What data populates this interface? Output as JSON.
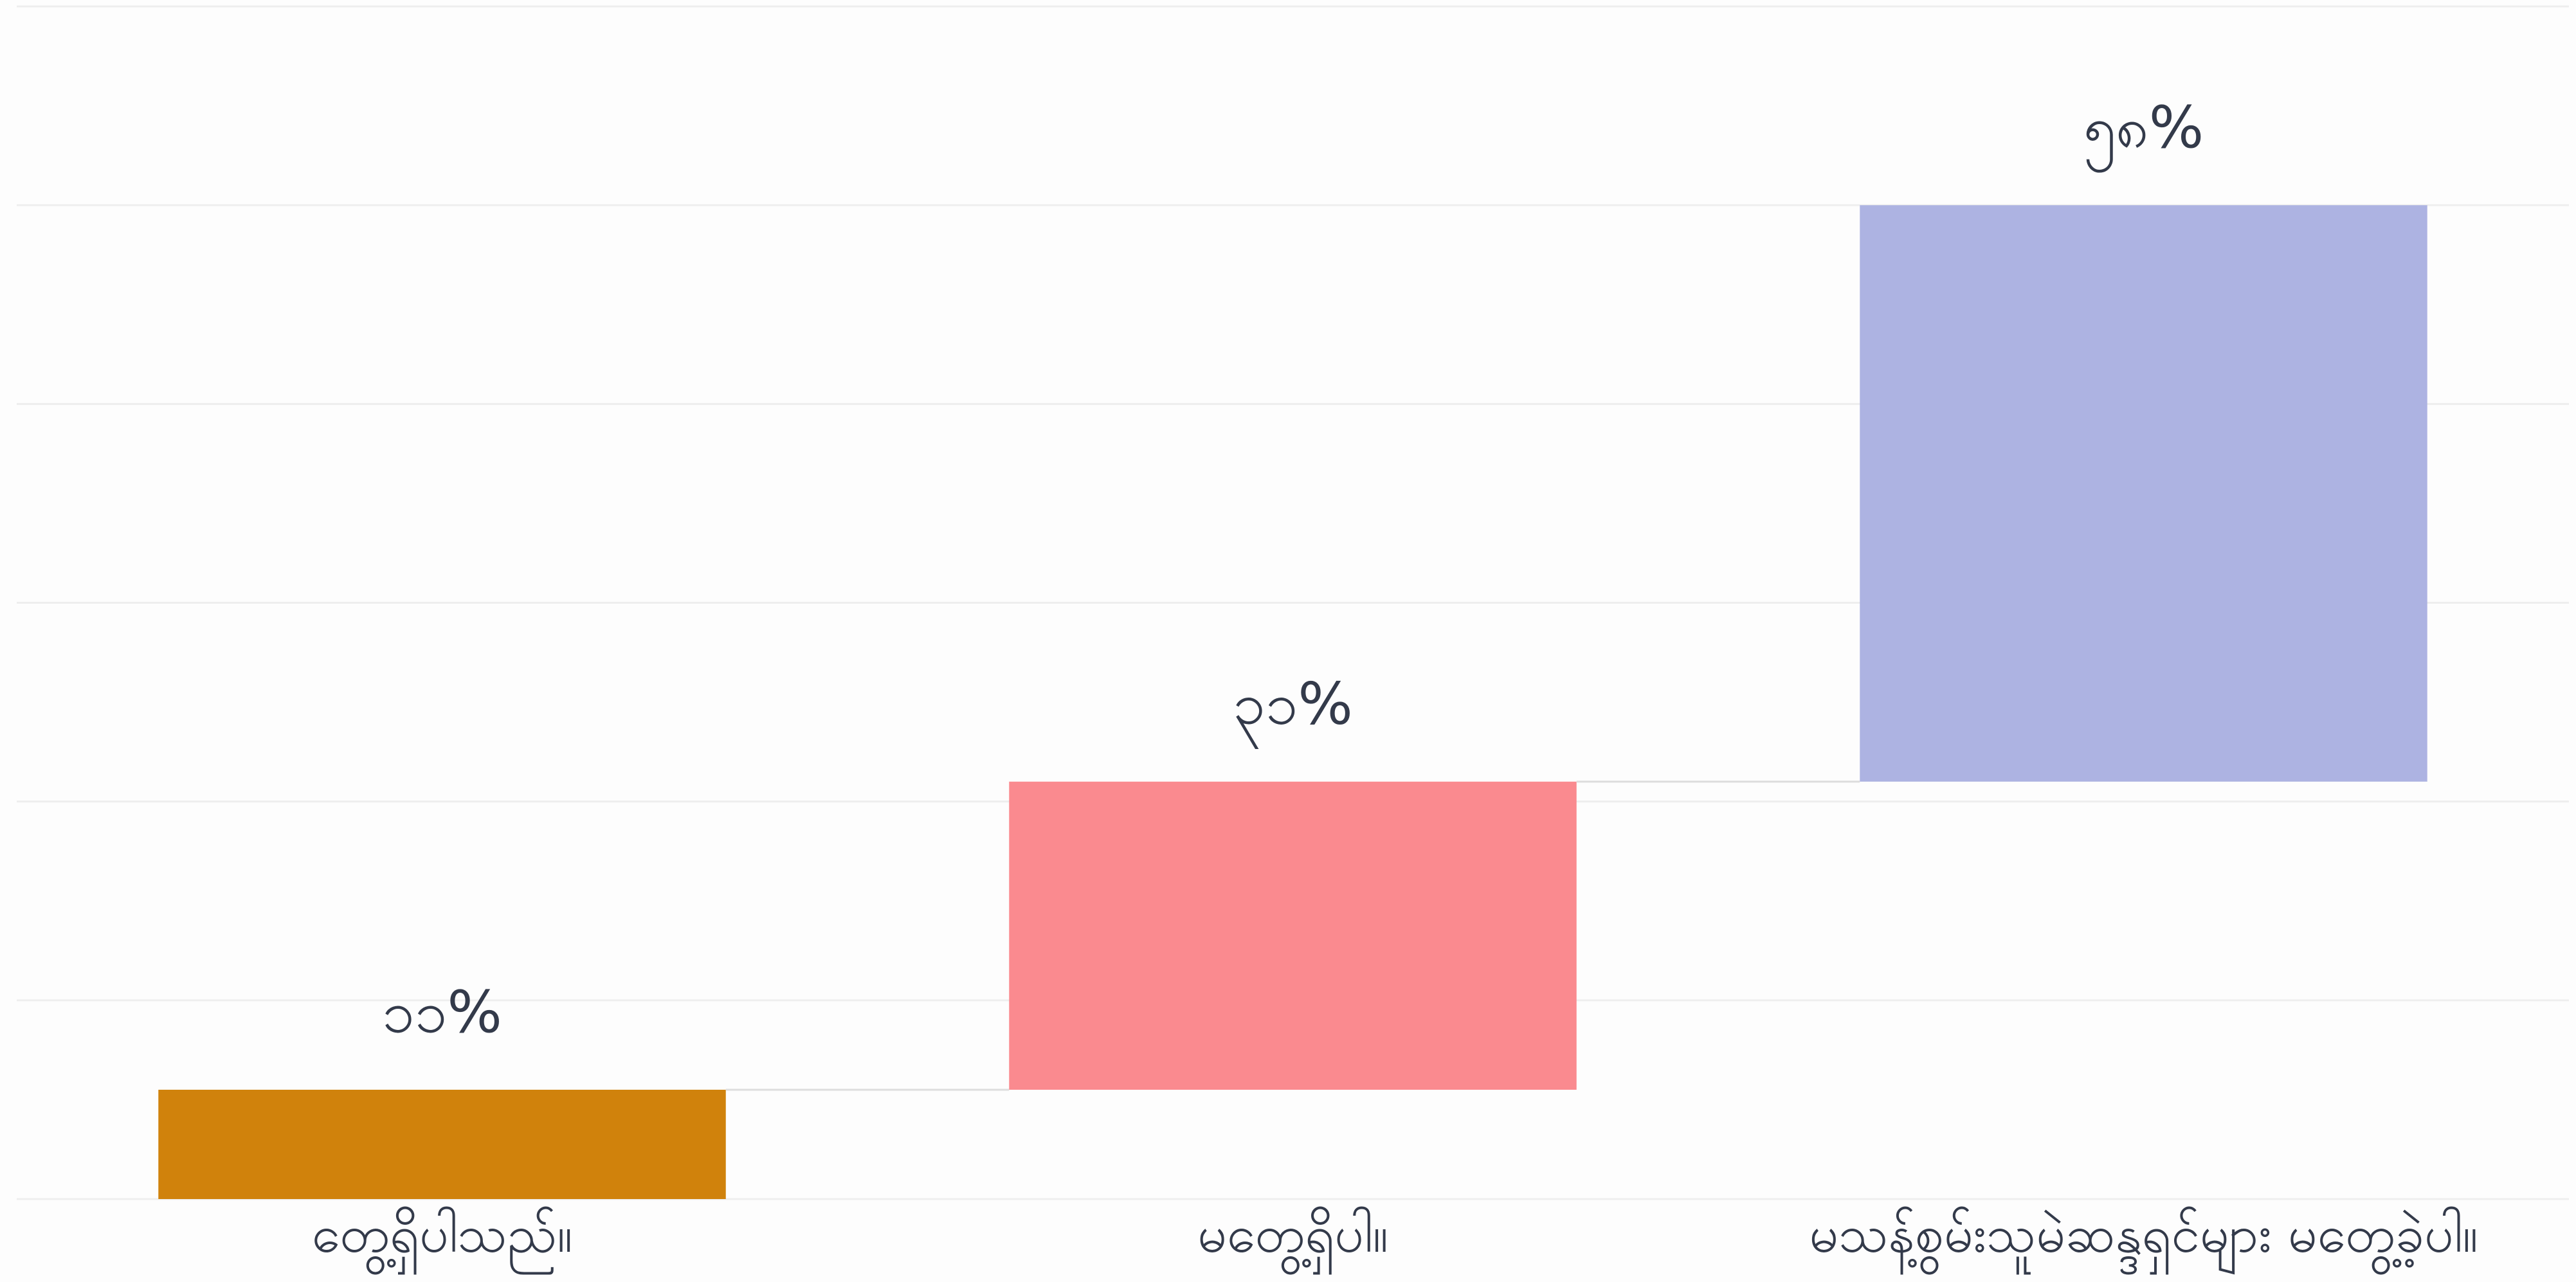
{
  "chart_data": {
    "type": "waterfall",
    "categories": [
      "တွေ့ရှိပါသည်။",
      "မတွေ့ရှိပါ။",
      "မသန့်စွမ်းသူမဲဆန္ဒရှင်များ မတွေ့ခဲ့ပါ။"
    ],
    "values": [
      11,
      31,
      58
    ],
    "value_labels": [
      "၁၁%",
      "၃၁%",
      "၅၈%"
    ],
    "colors": [
      "#d0820c",
      "#fa8a8f",
      "#adb3e2"
    ],
    "ylim": [
      0,
      120
    ],
    "yticks": [
      0,
      20,
      40,
      60,
      80,
      100,
      120
    ],
    "grid": true
  }
}
